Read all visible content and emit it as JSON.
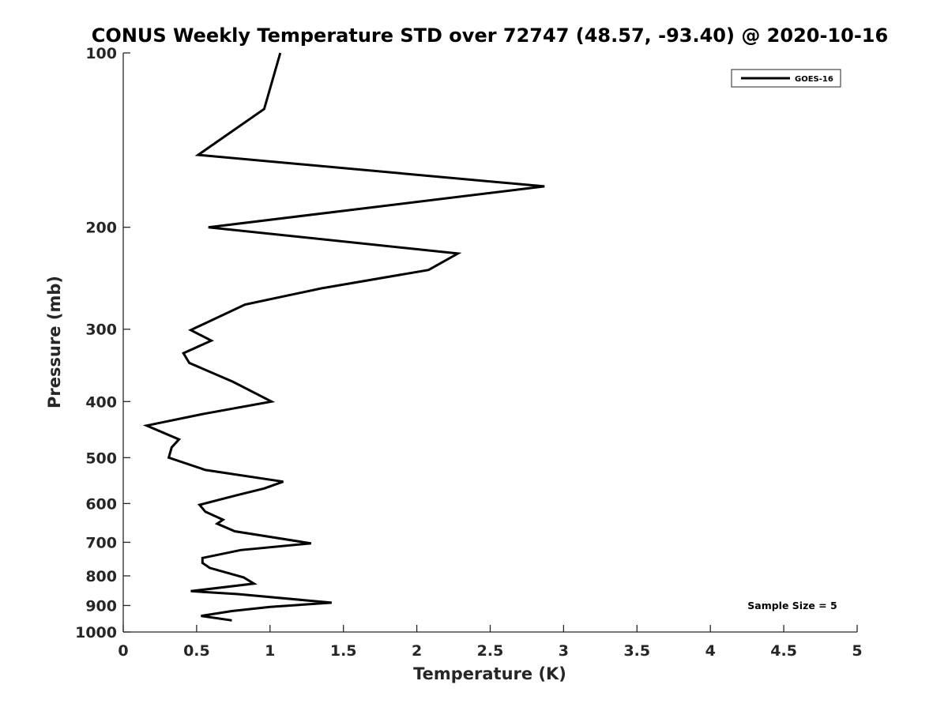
{
  "chart_data": {
    "type": "line",
    "title": "CONUS Weekly Temperature STD over 72747 (48.57, -93.40) @ 2020-10-16",
    "xlabel": "Temperature (K)",
    "ylabel": "Pressure (mb)",
    "xlim": [
      0,
      5
    ],
    "ylim": [
      100,
      1000
    ],
    "y_scale": "log",
    "y_reversed": true,
    "x_ticks": [
      "0",
      "0.5",
      "1",
      "1.5",
      "2",
      "2.5",
      "3",
      "3.5",
      "4",
      "4.5",
      "5"
    ],
    "y_ticks": [
      "100",
      "200",
      "300",
      "400",
      "500",
      "600",
      "700",
      "800",
      "900",
      "1000"
    ],
    "grid": false,
    "legend": {
      "placement": "top-right",
      "entries": [
        "GOES-16"
      ]
    },
    "annotation": "Sample Size = 5",
    "series": [
      {
        "name": "GOES-16",
        "color": "#000000",
        "points": [
          [
            1.07,
            100
          ],
          [
            0.96,
            125
          ],
          [
            0.51,
            150
          ],
          [
            2.87,
            170
          ],
          [
            0.58,
            200
          ],
          [
            2.28,
            222
          ],
          [
            2.08,
            237
          ],
          [
            1.35,
            255
          ],
          [
            0.83,
            272
          ],
          [
            0.46,
            301
          ],
          [
            0.6,
            314
          ],
          [
            0.41,
            330
          ],
          [
            0.45,
            343
          ],
          [
            0.75,
            370
          ],
          [
            1.01,
            400
          ],
          [
            0.55,
            420
          ],
          [
            0.16,
            440
          ],
          [
            0.38,
            465
          ],
          [
            0.33,
            480
          ],
          [
            0.31,
            500
          ],
          [
            0.56,
            525
          ],
          [
            1.09,
            550
          ],
          [
            0.96,
            565
          ],
          [
            0.78,
            580
          ],
          [
            0.52,
            603
          ],
          [
            0.56,
            620
          ],
          [
            0.68,
            640
          ],
          [
            0.64,
            650
          ],
          [
            0.76,
            670
          ],
          [
            1.28,
            703
          ],
          [
            0.8,
            722
          ],
          [
            0.54,
            745
          ],
          [
            0.54,
            760
          ],
          [
            0.59,
            775
          ],
          [
            0.82,
            805
          ],
          [
            0.89,
            825
          ],
          [
            0.46,
            850
          ],
          [
            0.78,
            860
          ],
          [
            1.42,
            890
          ],
          [
            1.0,
            905
          ],
          [
            0.74,
            920
          ],
          [
            0.53,
            938
          ],
          [
            0.74,
            955
          ]
        ]
      }
    ]
  }
}
